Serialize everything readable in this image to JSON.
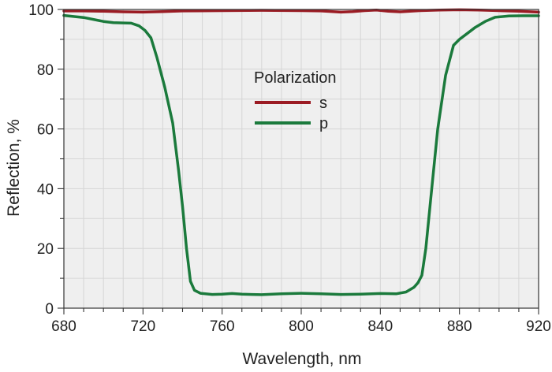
{
  "chart_data": {
    "type": "line",
    "title": "",
    "xlabel": "Wavelength, nm",
    "ylabel": "Reflection, %",
    "xlim": [
      680,
      920
    ],
    "ylim": [
      0,
      100
    ],
    "xticks": [
      680,
      720,
      760,
      800,
      840,
      880,
      920
    ],
    "yticks": [
      0,
      20,
      40,
      60,
      80,
      100
    ],
    "grid": true,
    "background_color": "#efefef",
    "grid_color": "#d6d6d6",
    "legend": {
      "title": "Polarization",
      "position": "top-center"
    },
    "series": [
      {
        "name": "s",
        "color": "#9b1b23",
        "points": [
          [
            680,
            99.5
          ],
          [
            690,
            99.5
          ],
          [
            700,
            99.4
          ],
          [
            710,
            99.2
          ],
          [
            720,
            99.1
          ],
          [
            730,
            99.3
          ],
          [
            740,
            99.5
          ],
          [
            760,
            99.6
          ],
          [
            780,
            99.7
          ],
          [
            800,
            99.6
          ],
          [
            810,
            99.5
          ],
          [
            820,
            99.1
          ],
          [
            826,
            99.3
          ],
          [
            832,
            99.6
          ],
          [
            838,
            99.8
          ],
          [
            844,
            99.4
          ],
          [
            850,
            99.2
          ],
          [
            860,
            99.6
          ],
          [
            870,
            99.8
          ],
          [
            880,
            99.9
          ],
          [
            890,
            99.8
          ],
          [
            900,
            99.6
          ],
          [
            910,
            99.4
          ],
          [
            920,
            99.1
          ]
        ]
      },
      {
        "name": "p",
        "color": "#1b7a3c",
        "points": [
          [
            680,
            98.0
          ],
          [
            690,
            97.3
          ],
          [
            700,
            96.0
          ],
          [
            705,
            95.6
          ],
          [
            710,
            95.5
          ],
          [
            714,
            95.4
          ],
          [
            718,
            94.5
          ],
          [
            721,
            93.0
          ],
          [
            724,
            90.5
          ],
          [
            727,
            84.0
          ],
          [
            731,
            74.0
          ],
          [
            735,
            62.0
          ],
          [
            738,
            46.0
          ],
          [
            740,
            34.0
          ],
          [
            742,
            20.0
          ],
          [
            744,
            9.0
          ],
          [
            746,
            6.0
          ],
          [
            749,
            5.0
          ],
          [
            755,
            4.6
          ],
          [
            760,
            4.7
          ],
          [
            765,
            4.9
          ],
          [
            770,
            4.7
          ],
          [
            775,
            4.6
          ],
          [
            780,
            4.5
          ],
          [
            790,
            4.8
          ],
          [
            800,
            5.0
          ],
          [
            810,
            4.8
          ],
          [
            820,
            4.6
          ],
          [
            830,
            4.7
          ],
          [
            840,
            4.9
          ],
          [
            848,
            4.8
          ],
          [
            853,
            5.4
          ],
          [
            857,
            7.0
          ],
          [
            859,
            8.5
          ],
          [
            861,
            11.0
          ],
          [
            863,
            20.0
          ],
          [
            866,
            40.0
          ],
          [
            869,
            60.0
          ],
          [
            873,
            78.0
          ],
          [
            877,
            88.0
          ],
          [
            880,
            90.0
          ],
          [
            884,
            92.0
          ],
          [
            888,
            94.0
          ],
          [
            893,
            96.0
          ],
          [
            898,
            97.4
          ],
          [
            905,
            97.8
          ],
          [
            912,
            97.9
          ],
          [
            920,
            97.9
          ]
        ]
      }
    ]
  }
}
